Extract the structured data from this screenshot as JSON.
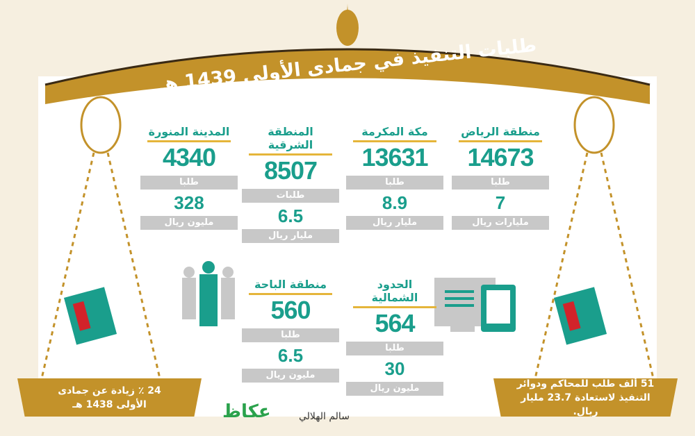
{
  "title": "طلبات التنفيذ في جمادى الأولى 1439 هـ",
  "regions_top": [
    {
      "name": "منطقة الرياض",
      "requests": "14673",
      "requests_unit": "طلبا",
      "amount": "7",
      "amount_unit": "مليارات ريال"
    },
    {
      "name": "مكة المكرمة",
      "requests": "13631",
      "requests_unit": "طلبا",
      "amount": "8.9",
      "amount_unit": "مليار ريال"
    },
    {
      "name": "المنطقة الشرقية",
      "requests": "8507",
      "requests_unit": "طلبات",
      "amount": "6.5",
      "amount_unit": "مليار ريال"
    },
    {
      "name": "المدينة المنورة",
      "requests": "4340",
      "requests_unit": "طلبا",
      "amount": "328",
      "amount_unit": "مليون ريال"
    }
  ],
  "regions_bottom": [
    {
      "name": "الحدود الشمالية",
      "requests": "564",
      "requests_unit": "طلبا",
      "amount": "30",
      "amount_unit": "مليون ريال"
    },
    {
      "name": "منطقة الباحة",
      "requests": "560",
      "requests_unit": "طلبا",
      "amount": "6.5",
      "amount_unit": "مليون ريال"
    }
  ],
  "left_note": "24 ٪ زيادة عن جمادى الأولى 1438 هـ",
  "right_note": "51 ألف طلب للمحاكم ودوائر التنفيذ لاستعادة 23.7 مليار ريال.",
  "credit": "سالم الهلالي",
  "logo": "عكاظ",
  "colors": {
    "gold": "#c3922a",
    "teal": "#1a9e8c",
    "grey": "#c8c8c8"
  },
  "icons": [
    "scale-icon",
    "newspaper-icon",
    "people-icon",
    "computer-tablet-icon"
  ]
}
